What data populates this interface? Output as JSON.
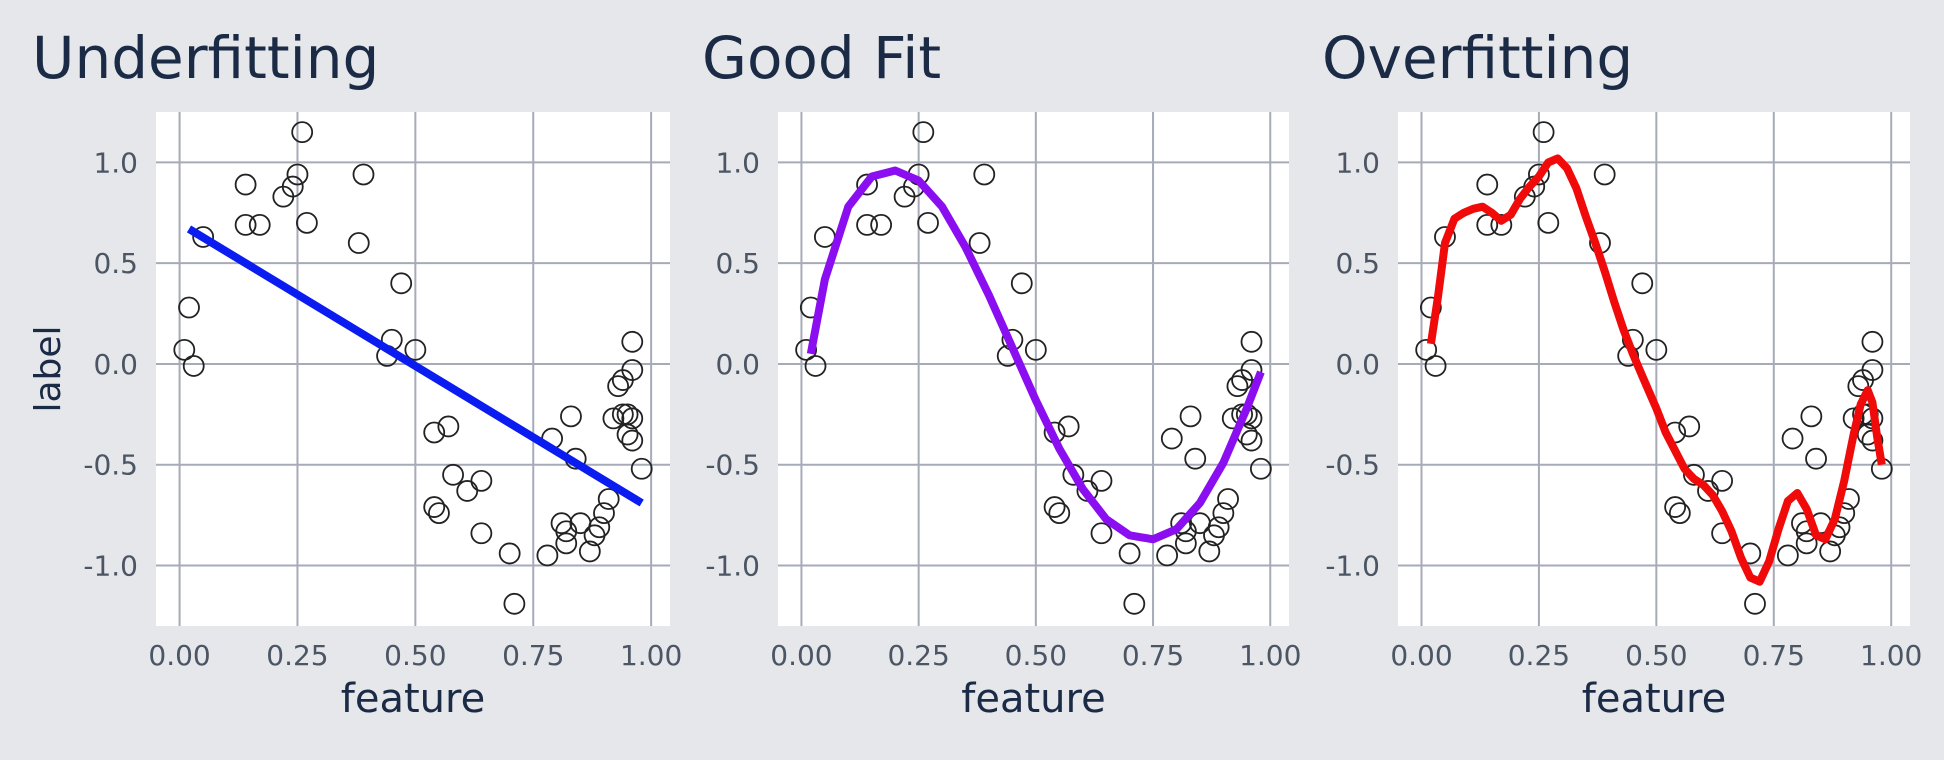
{
  "chart_data": [
    {
      "type": "scatter",
      "title": "Underfitting",
      "xlabel": "feature",
      "ylabel": "label",
      "xlim": [
        -0.05,
        1.04
      ],
      "ylim": [
        -1.3,
        1.25
      ],
      "xticks": [
        0.0,
        0.25,
        0.5,
        0.75,
        1.0
      ],
      "xtick_labels": [
        "0.00",
        "0.25",
        "0.50",
        "0.75",
        "1.00"
      ],
      "yticks": [
        1.0,
        0.5,
        0.0,
        -0.5,
        -1.0
      ],
      "ytick_labels": [
        "1.0",
        "0.5",
        "0.0",
        "-0.5",
        "-1.0"
      ],
      "grid": true,
      "fit_color": "#0a1cf0",
      "fit_curve": {
        "x": [
          0.02,
          0.98
        ],
        "y": [
          0.67,
          -0.69
        ]
      }
    },
    {
      "type": "scatter",
      "title": "Good Fit",
      "xlabel": "feature",
      "ylabel": "",
      "xlim": [
        -0.05,
        1.04
      ],
      "ylim": [
        -1.3,
        1.25
      ],
      "xticks": [
        0.0,
        0.25,
        0.5,
        0.75,
        1.0
      ],
      "xtick_labels": [
        "0.00",
        "0.25",
        "0.50",
        "0.75",
        "1.00"
      ],
      "yticks": [
        1.0,
        0.5,
        0.0,
        -0.5,
        -1.0
      ],
      "ytick_labels": [
        "1.0",
        "0.5",
        "0.0",
        "-0.5",
        "-1.0"
      ],
      "grid": true,
      "fit_color": "#8a0ef0",
      "fit_curve": {
        "x": [
          0.02,
          0.05,
          0.1,
          0.15,
          0.2,
          0.25,
          0.3,
          0.35,
          0.4,
          0.45,
          0.5,
          0.55,
          0.6,
          0.65,
          0.7,
          0.75,
          0.8,
          0.85,
          0.9,
          0.95,
          0.98
        ],
        "y": [
          0.05,
          0.42,
          0.78,
          0.93,
          0.96,
          0.91,
          0.78,
          0.58,
          0.34,
          0.08,
          -0.18,
          -0.42,
          -0.62,
          -0.77,
          -0.85,
          -0.87,
          -0.82,
          -0.69,
          -0.49,
          -0.22,
          -0.04
        ]
      }
    },
    {
      "type": "scatter",
      "title": "Overfitting",
      "xlabel": "feature",
      "ylabel": "",
      "xlim": [
        -0.05,
        1.04
      ],
      "ylim": [
        -1.3,
        1.25
      ],
      "xticks": [
        0.0,
        0.25,
        0.5,
        0.75,
        1.0
      ],
      "xtick_labels": [
        "0.00",
        "0.25",
        "0.50",
        "0.75",
        "1.00"
      ],
      "yticks": [
        1.0,
        0.5,
        0.0,
        -0.5,
        -1.0
      ],
      "ytick_labels": [
        "1.0",
        "0.5",
        "0.0",
        "-0.5",
        "-1.0"
      ],
      "grid": true,
      "fit_color": "#f00a0a",
      "fit_curve": {
        "x": [
          0.02,
          0.035,
          0.05,
          0.07,
          0.09,
          0.11,
          0.13,
          0.15,
          0.17,
          0.19,
          0.21,
          0.23,
          0.25,
          0.27,
          0.29,
          0.31,
          0.33,
          0.35,
          0.37,
          0.39,
          0.41,
          0.43,
          0.45,
          0.47,
          0.5,
          0.52,
          0.54,
          0.56,
          0.58,
          0.6,
          0.62,
          0.64,
          0.66,
          0.68,
          0.7,
          0.72,
          0.74,
          0.76,
          0.78,
          0.8,
          0.82,
          0.84,
          0.86,
          0.88,
          0.9,
          0.92,
          0.935,
          0.95,
          0.96,
          0.97,
          0.98
        ],
        "y": [
          0.1,
          0.33,
          0.6,
          0.72,
          0.75,
          0.77,
          0.78,
          0.75,
          0.71,
          0.74,
          0.82,
          0.88,
          0.93,
          1.0,
          1.02,
          0.97,
          0.87,
          0.73,
          0.6,
          0.46,
          0.31,
          0.17,
          0.05,
          -0.06,
          -0.22,
          -0.34,
          -0.43,
          -0.52,
          -0.57,
          -0.6,
          -0.65,
          -0.73,
          -0.83,
          -0.96,
          -1.06,
          -1.08,
          -0.98,
          -0.82,
          -0.68,
          -0.64,
          -0.72,
          -0.85,
          -0.87,
          -0.77,
          -0.58,
          -0.35,
          -0.2,
          -0.13,
          -0.19,
          -0.36,
          -0.5
        ]
      }
    }
  ],
  "points": {
    "x": [
      0.01,
      0.02,
      0.03,
      0.05,
      0.14,
      0.14,
      0.17,
      0.22,
      0.24,
      0.25,
      0.26,
      0.27,
      0.38,
      0.39,
      0.44,
      0.45,
      0.47,
      0.5,
      0.54,
      0.55,
      0.57,
      0.58,
      0.61,
      0.64,
      0.64,
      0.54,
      0.7,
      0.71,
      0.78,
      0.79,
      0.81,
      0.82,
      0.82,
      0.83,
      0.84,
      0.85,
      0.87,
      0.88,
      0.89,
      0.9,
      0.91,
      0.92,
      0.93,
      0.94,
      0.94,
      0.95,
      0.95,
      0.96,
      0.96,
      0.96,
      0.96,
      0.98
    ],
    "y": [
      0.07,
      0.28,
      -0.01,
      0.63,
      0.89,
      0.69,
      0.69,
      0.83,
      0.88,
      0.94,
      1.15,
      0.7,
      0.6,
      0.94,
      0.04,
      0.12,
      0.4,
      0.07,
      -0.34,
      -0.74,
      -0.31,
      -0.55,
      -0.63,
      -0.58,
      -0.84,
      -0.71,
      -0.94,
      -1.19,
      -0.95,
      -0.37,
      -0.79,
      -0.83,
      -0.89,
      -0.26,
      -0.47,
      -0.79,
      -0.93,
      -0.85,
      -0.81,
      -0.74,
      -0.67,
      -0.27,
      -0.11,
      -0.08,
      -0.25,
      -0.25,
      -0.35,
      -0.38,
      -0.03,
      0.11,
      -0.27,
      -0.52
    ]
  }
}
